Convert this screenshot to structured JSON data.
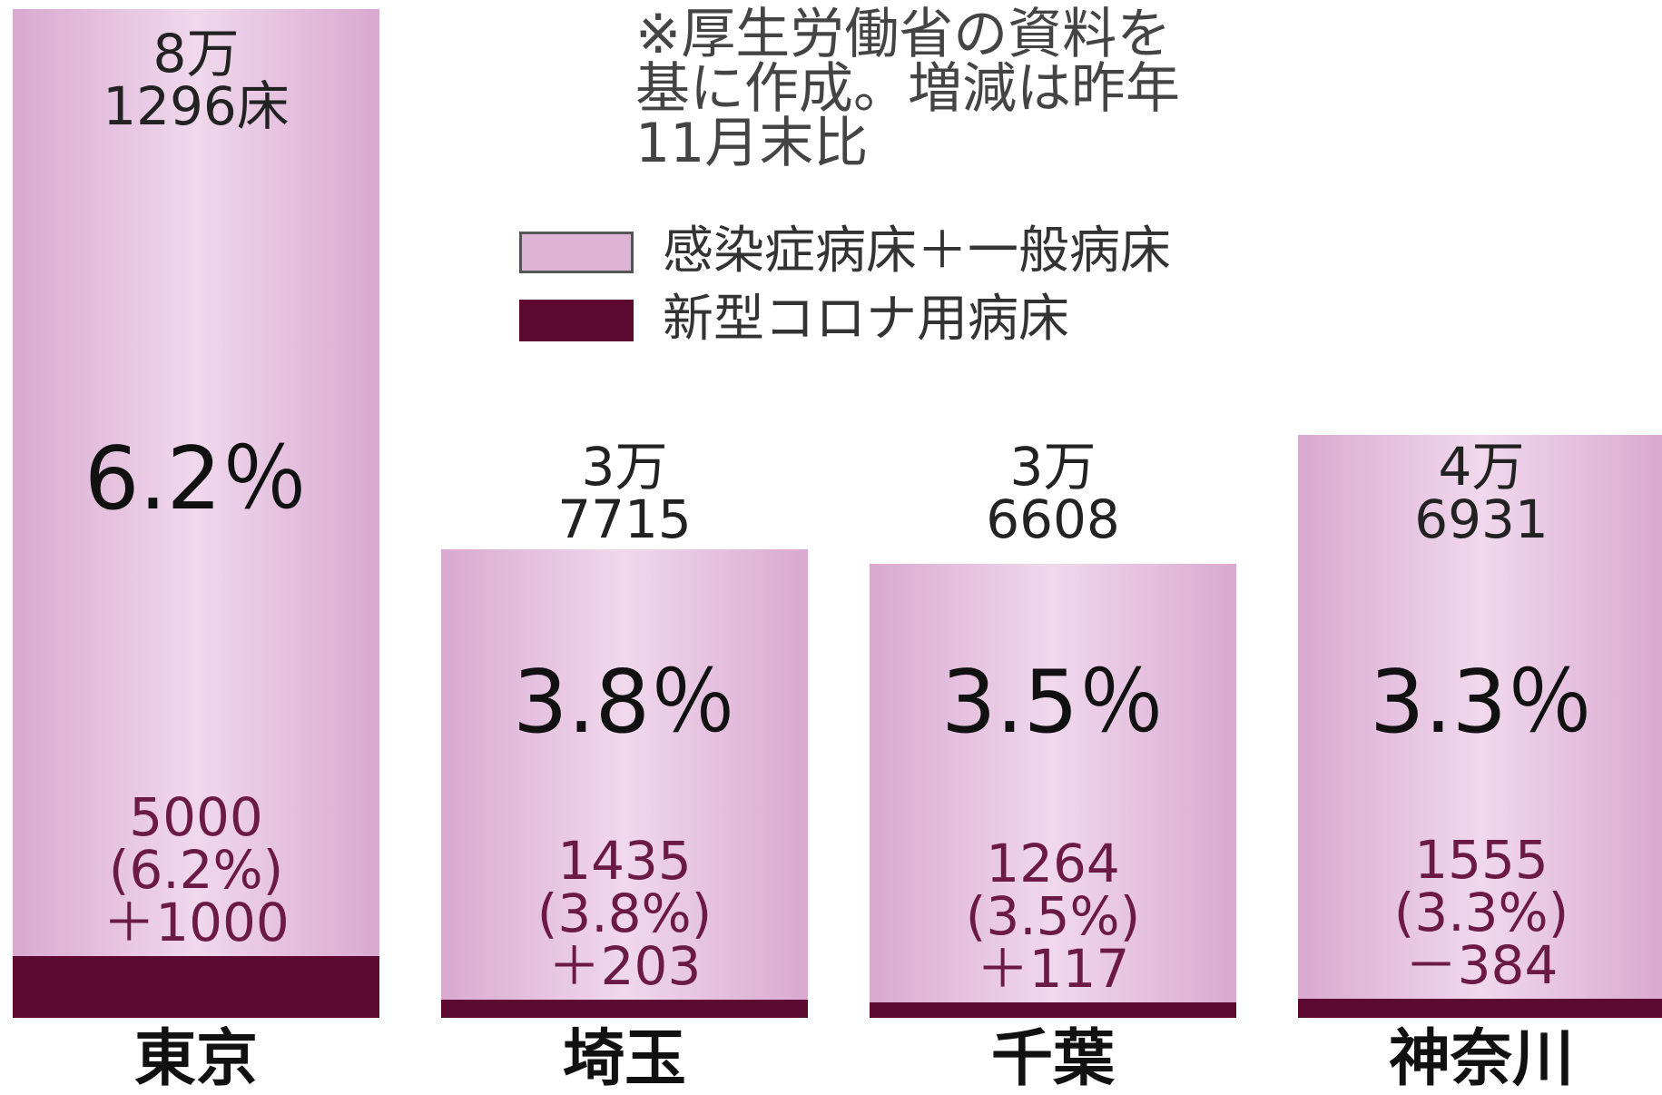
{
  "chart_data": {
    "type": "bar",
    "note": [
      "※厚生労働省の資料を",
      "基に作成。増減は昨年",
      "11月末比"
    ],
    "categories": [
      "東京",
      "埼玉",
      "千葉",
      "神奈川"
    ],
    "series": [
      {
        "name": "感染症病床＋一般病床",
        "color": "#ddb3d6",
        "values": [
          81296,
          37715,
          36608,
          46931
        ],
        "value_labels": [
          "8万\n1296床",
          "3万\n7715",
          "3万\n6608",
          "4万\n6931"
        ]
      },
      {
        "name": "新型コロナ用病床",
        "color": "#5c0a32",
        "values": [
          5000,
          1435,
          1264,
          1555
        ],
        "shares": [
          6.2,
          3.8,
          3.5,
          3.3
        ],
        "share_labels": [
          "(6.2%)",
          "(3.8%)",
          "(3.5%)",
          "(3.3%)"
        ],
        "share_labels_large": [
          "6.2％",
          "3.8％",
          "3.5％",
          "3.3％"
        ],
        "changes": [
          1000,
          203,
          117,
          -384
        ],
        "change_labels": [
          "＋1000",
          "＋203",
          "＋117",
          "－384"
        ]
      }
    ],
    "ylim": [
      0,
      82000
    ]
  }
}
